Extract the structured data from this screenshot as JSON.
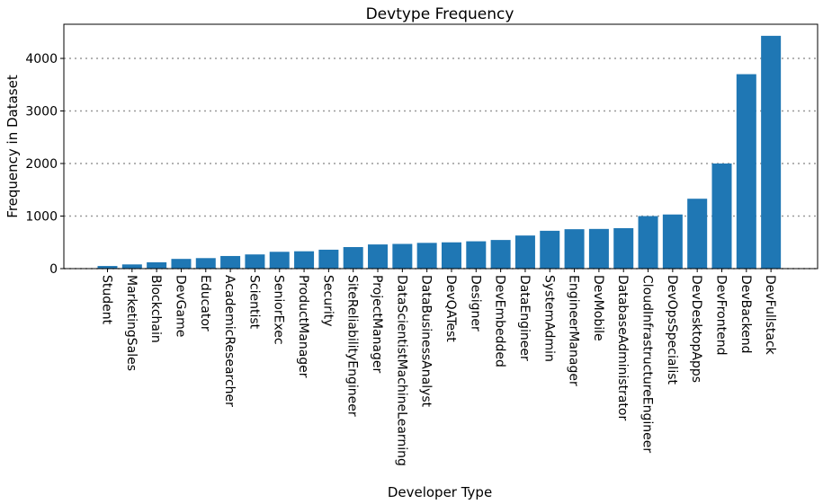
{
  "chart_data": {
    "type": "bar",
    "title": "Devtype Frequency",
    "xlabel": "Developer Type",
    "ylabel": "Frequency in Dataset",
    "ylim": [
      0,
      4650
    ],
    "yticks": [
      0,
      1000,
      2000,
      3000,
      4000
    ],
    "grid": "horizontal dotted",
    "bar_color": "#1f77b4",
    "categories": [
      "Student",
      "MarketingSales",
      "Blockchain",
      "DevGame",
      "Educator",
      "AcademicResearcher",
      "Scientist",
      "SeniorExec",
      "ProductManager",
      "Security",
      "SiteReliabilityEngineer",
      "ProjectManager",
      "DataScientistMachineLearning",
      "DataBusinessAnalyst",
      "DevQATest",
      "Designer",
      "DevEmbedded",
      "DataEngineer",
      "SystemAdmin",
      "EngineerManager",
      "DevMobile",
      "DatabaseAdministrator",
      "CloudInfrastructureEngineer",
      "DevOpsSpecialist",
      "DevDesktopApps",
      "DevFrontend",
      "DevBackend",
      "DevFullstack"
    ],
    "values": [
      50,
      80,
      120,
      185,
      200,
      240,
      270,
      320,
      330,
      360,
      410,
      460,
      470,
      490,
      500,
      520,
      545,
      630,
      720,
      750,
      755,
      770,
      1000,
      1030,
      1330,
      2000,
      3700,
      4430
    ]
  }
}
